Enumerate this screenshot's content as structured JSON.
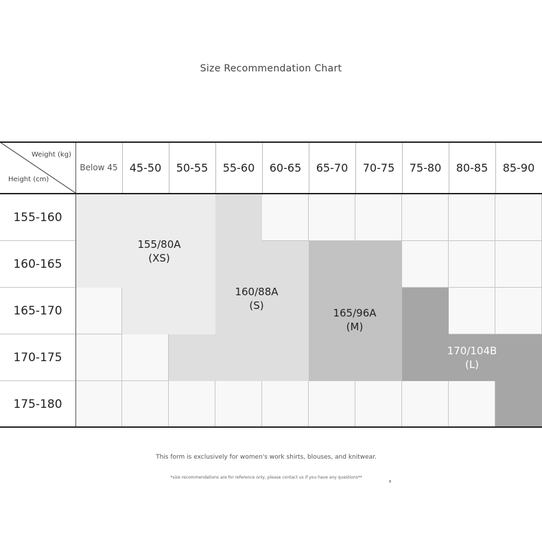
{
  "title": "Size Recommendation Chart",
  "corner": {
    "weight_label": "Weight (kg)",
    "height_label": "Height (cm)"
  },
  "weight_columns": [
    "Below 45",
    "45-50",
    "50-55",
    "55-60",
    "60-65",
    "65-70",
    "70-75",
    "75-80",
    "80-85",
    "85-90"
  ],
  "height_rows": [
    "155-160",
    "160-165",
    "165-170",
    "170-175",
    "175-180"
  ],
  "sizes": [
    {
      "code": "155/80A",
      "size": "(XS)",
      "color": "#ececec"
    },
    {
      "code": "160/88A",
      "size": "(S)",
      "color": "#dedede"
    },
    {
      "code": "165/96A",
      "size": "(M)",
      "color": "#c2c2c2"
    },
    {
      "code": "170/104B",
      "size": "(L)",
      "color": "#a6a6a6"
    }
  ],
  "notes": {
    "line1": "This form is exclusively for women's work shirts, blouses, and knitwear.",
    "line2": "*size recommendations are for reference only, please contact us if you have any questions**"
  }
}
